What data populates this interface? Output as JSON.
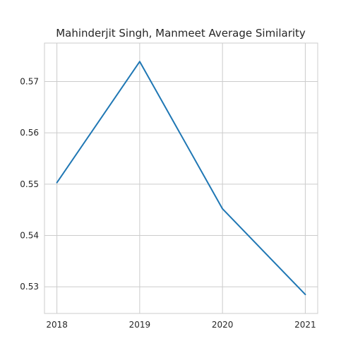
{
  "chart_data": {
    "type": "line",
    "title": "Mahinderjit Singh, Manmeet Average Similarity",
    "xlabel": "",
    "ylabel": "",
    "x": [
      2018,
      2019,
      2020,
      2021
    ],
    "series": [
      {
        "values": [
          0.5503,
          0.5739,
          0.5452,
          0.5285
        ]
      }
    ],
    "xticks": [
      "2018",
      "2019",
      "2020",
      "2021"
    ],
    "yticks": [
      0.53,
      0.54,
      0.55,
      0.56,
      0.57
    ],
    "ytick_labels": [
      "0.53",
      "0.54",
      "0.55",
      "0.56",
      "0.57"
    ],
    "xlim": [
      2017.85,
      2021.15
    ],
    "ylim": [
      0.5248,
      0.5775
    ],
    "grid": true,
    "legend": "none",
    "line_color": "#1f77b4",
    "grid_color": "#cccccc"
  }
}
